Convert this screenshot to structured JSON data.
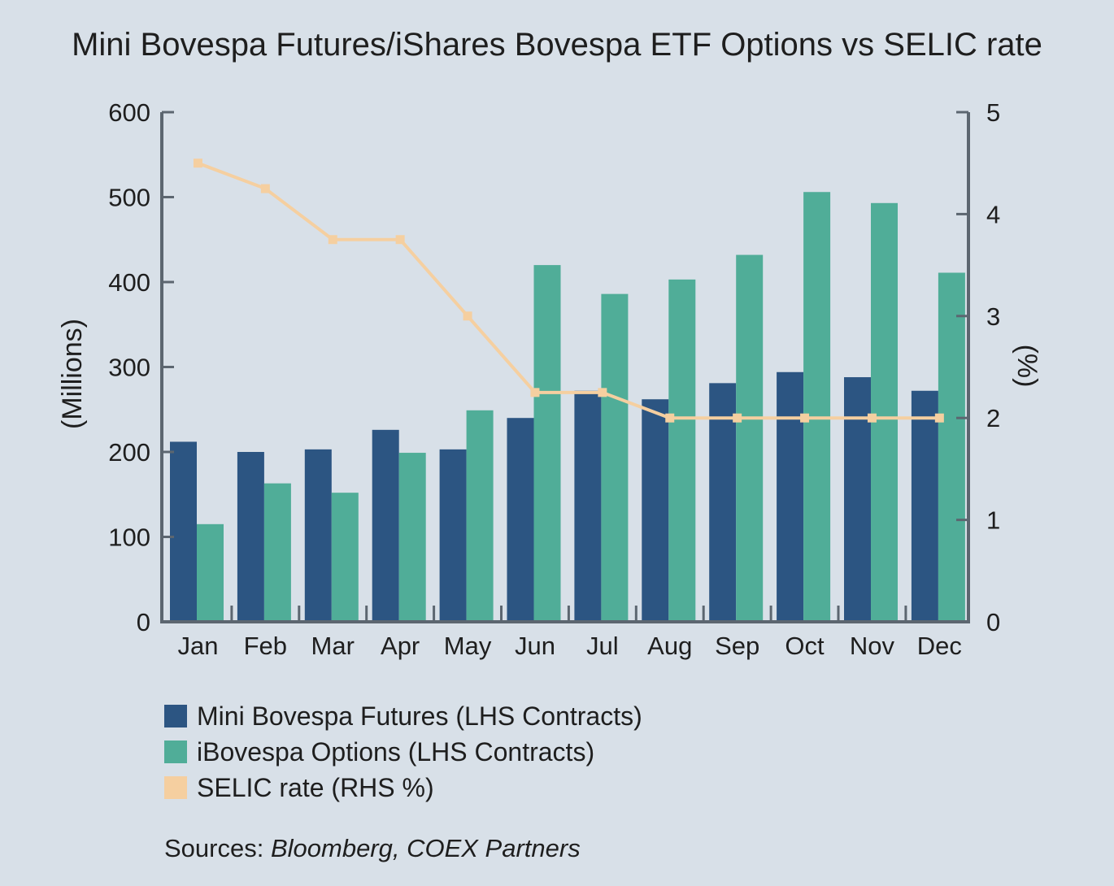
{
  "colors": {
    "background": "#d8e0e8",
    "futures": "#2c5582",
    "options": "#50ad98",
    "selic": "#f5cfa0",
    "axis": "#5c6670",
    "text": "#1e1e1e"
  },
  "chart_data": {
    "type": "bar",
    "title": "Mini Bovespa Futures/iShares Bovespa ETF Options vs SELIC rate",
    "categories": [
      "Jan",
      "Feb",
      "Mar",
      "Apr",
      "May",
      "Jun",
      "Jul",
      "Aug",
      "Sep",
      "Oct",
      "Nov",
      "Dec"
    ],
    "series": [
      {
        "name": "Mini Bovespa Futures (LHS Contracts)",
        "type": "bar",
        "axis": "left",
        "values": [
          212,
          200,
          203,
          226,
          203,
          240,
          272,
          262,
          281,
          294,
          288,
          272
        ]
      },
      {
        "name": "iBovespa Options (LHS Contracts)",
        "type": "bar",
        "axis": "left",
        "values": [
          115,
          163,
          152,
          199,
          249,
          420,
          386,
          403,
          432,
          506,
          493,
          411
        ]
      },
      {
        "name": "SELIC rate (RHS %)",
        "type": "line",
        "axis": "right",
        "values": [
          4.5,
          4.25,
          3.75,
          3.75,
          3.0,
          2.25,
          2.25,
          2.0,
          2.0,
          2.0,
          2.0,
          2.0
        ]
      }
    ],
    "ylabel": "(Millions)",
    "y2label": "(%)",
    "ylim": [
      0,
      600
    ],
    "y2lim": [
      0,
      5
    ],
    "yticks": [
      "0",
      "100",
      "200",
      "300",
      "400",
      "500",
      "600"
    ],
    "y2ticks": [
      "0",
      "1",
      "2",
      "3",
      "4",
      "5"
    ],
    "grid": false,
    "legend_position": "bottom-left"
  },
  "source": {
    "prefix": "Sources: ",
    "names": "Bloomberg, COEX Partners"
  }
}
